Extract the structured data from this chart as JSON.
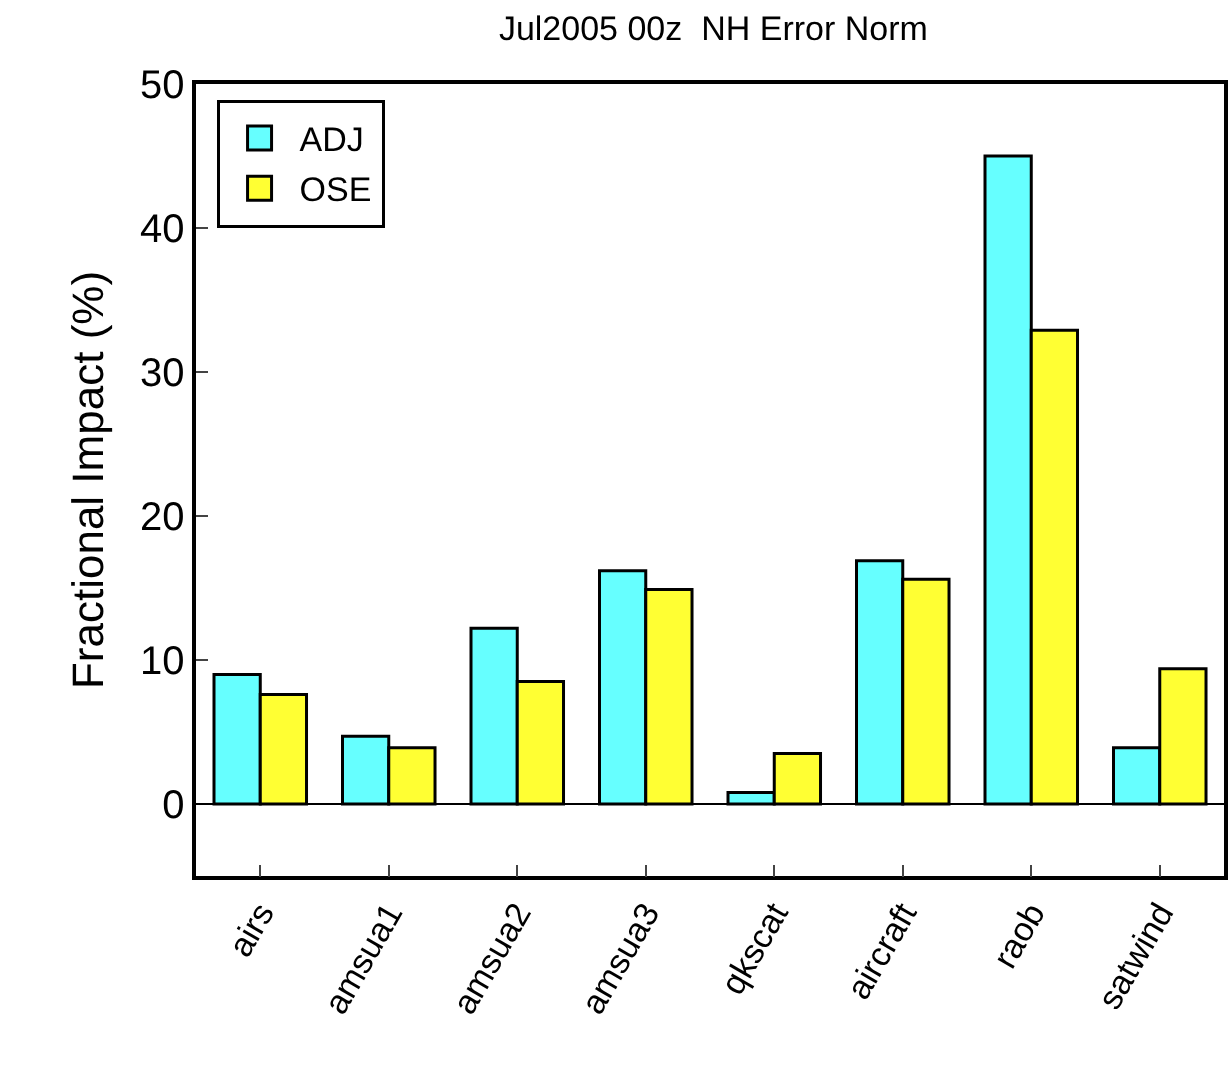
{
  "chart_data": {
    "type": "bar",
    "title": "Jul2005 00z  NH Error Norm",
    "ylabel": "Fractional Impact (%)",
    "categories": [
      "airs",
      "amsua1",
      "amsua2",
      "amsua3",
      "qkscat",
      "aircraft",
      "raob",
      "satwind"
    ],
    "series": [
      {
        "name": "ADJ",
        "color": "#66ffff",
        "values": [
          9.0,
          4.7,
          12.2,
          16.2,
          0.8,
          16.9,
          45.0,
          3.9
        ]
      },
      {
        "name": "OSE",
        "color": "#ffff33",
        "values": [
          7.6,
          3.9,
          8.5,
          14.9,
          3.5,
          15.6,
          32.9,
          9.4
        ]
      }
    ],
    "ylim": [
      -5,
      50
    ],
    "yticks": [
      0,
      10,
      20,
      30,
      40,
      50
    ],
    "grid": false,
    "legend": "top left",
    "ref_lines": [
      {
        "axis": "y",
        "value": 0,
        "color": "#000000"
      }
    ]
  }
}
